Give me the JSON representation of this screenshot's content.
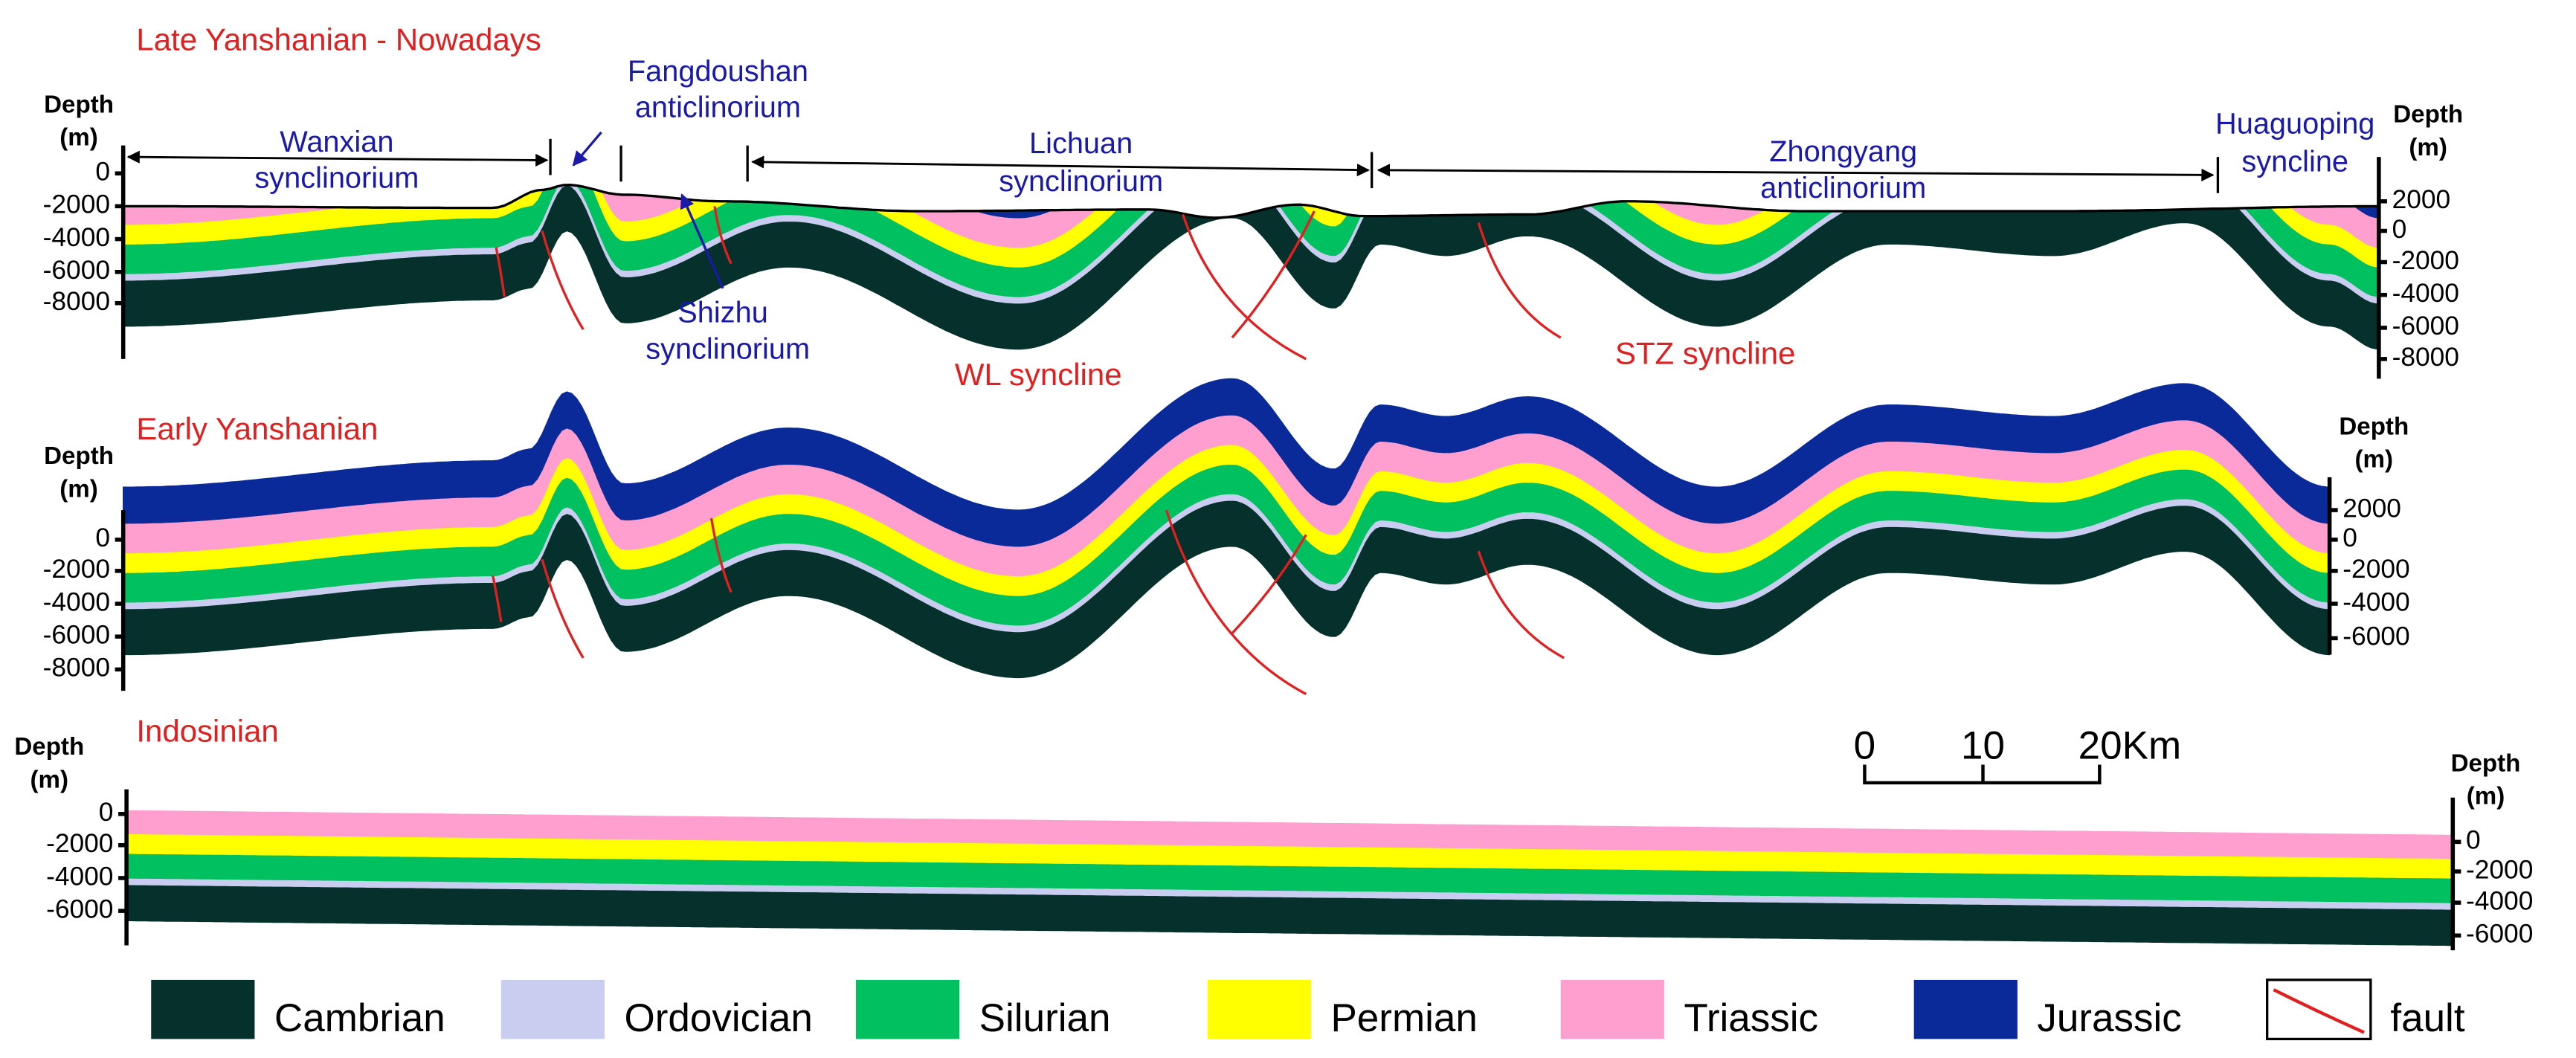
{
  "panels": [
    {
      "title": "Late Yanshanian - Nowadays",
      "left_axis": {
        "label": [
          "Depth",
          "(m)"
        ],
        "ticks": [
          "0",
          "-2000",
          "-4000",
          "-6000",
          "-8000"
        ]
      },
      "right_axis": {
        "label": [
          "Depth",
          "(m)"
        ],
        "ticks": [
          "2000",
          "0",
          "-2000",
          "-4000",
          "-6000",
          "-8000"
        ]
      },
      "annotations": [
        {
          "lines": [
            "Wanxian",
            "synclinorium"
          ]
        },
        {
          "lines": [
            "Fangdoushan",
            "anticlinorium"
          ]
        },
        {
          "lines": [
            "Lichuan",
            "synclinorium"
          ]
        },
        {
          "lines": [
            "Zhongyang",
            "anticlinorium"
          ]
        },
        {
          "lines": [
            "Huaguoping",
            "syncline"
          ]
        },
        {
          "lines": [
            "Shizhu",
            "synclinorium"
          ]
        },
        {
          "lines": [
            "WL syncline"
          ]
        },
        {
          "lines": [
            "STZ syncline"
          ]
        }
      ]
    },
    {
      "title": "Early Yanshanian",
      "left_axis": {
        "label": [
          "Depth",
          "(m)"
        ],
        "ticks": [
          "0",
          "-2000",
          "-4000",
          "-6000",
          "-8000"
        ]
      },
      "right_axis": {
        "label": [
          "Depth",
          "(m)"
        ],
        "ticks": [
          "2000",
          "0",
          "-2000",
          "-4000",
          "-6000"
        ]
      }
    },
    {
      "title": "Indosinian",
      "left_axis": {
        "label": [
          "Depth",
          "(m)"
        ],
        "ticks": [
          "0",
          "-2000",
          "-4000",
          "-6000"
        ]
      },
      "right_axis": {
        "label": [
          "Depth",
          "(m)"
        ],
        "ticks": [
          "0",
          "-2000",
          "-4000",
          "-6000"
        ]
      }
    }
  ],
  "scale_bar": {
    "ticks": [
      "0",
      "10",
      "20Km"
    ]
  },
  "legend": [
    {
      "label": "Cambrian",
      "color": "#05302b"
    },
    {
      "label": "Ordovician",
      "color": "#c9cdf0"
    },
    {
      "label": "Silurian",
      "color": "#00c060"
    },
    {
      "label": "Permian",
      "color": "#ffff00"
    },
    {
      "label": "Triassic",
      "color": "#ff9fcf"
    },
    {
      "label": "Jurassic",
      "color": "#0a2a9a"
    },
    {
      "label": "fault",
      "color": "#e02020"
    }
  ]
}
